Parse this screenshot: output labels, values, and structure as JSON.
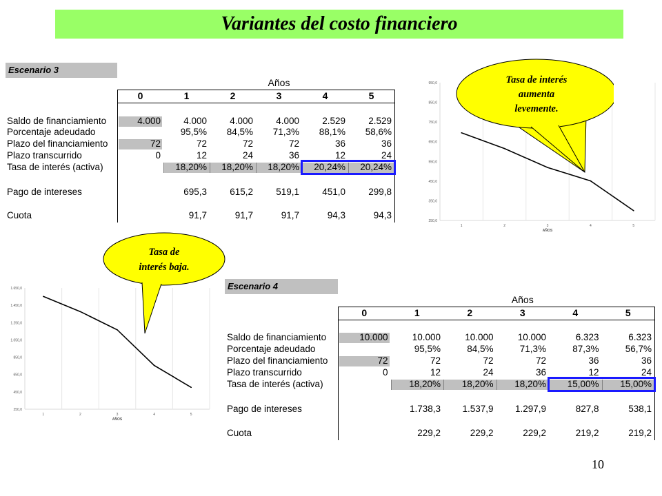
{
  "title": "Variantes del costo financiero",
  "page_number": "10",
  "row_labels": [
    "Saldo de financiamiento",
    "Porcentaje adeudado",
    "Plazo del financiamiento",
    "Plazo transcurrido",
    "Tasa de interés (activa)",
    "Pago de intereses",
    "Cuota"
  ],
  "years_label": "Años",
  "year_headers": [
    "0",
    "1",
    "2",
    "3",
    "4",
    "5"
  ],
  "scenario3": {
    "label": "Escenario 3",
    "rows": [
      [
        "4.000",
        "4.000",
        "4.000",
        "4.000",
        "2.529",
        "2.529"
      ],
      [
        "",
        "95,5%",
        "84,5%",
        "71,3%",
        "88,1%",
        "58,6%"
      ],
      [
        "72",
        "72",
        "72",
        "72",
        "36",
        "36"
      ],
      [
        "0",
        "12",
        "24",
        "36",
        "12",
        "24"
      ],
      [
        "",
        "18,20%",
        "18,20%",
        "18,20%",
        "20,24%",
        "20,24%"
      ],
      [
        "",
        "695,3",
        "615,2",
        "519,1",
        "451,0",
        "299,8"
      ],
      [
        "",
        "91,7",
        "91,7",
        "91,7",
        "94,3",
        "94,3"
      ]
    ],
    "callout": [
      "Tasa de interés",
      "aumenta",
      "levemente."
    ]
  },
  "scenario4": {
    "label": "Escenario 4",
    "rows": [
      [
        "10.000",
        "10.000",
        "10.000",
        "10.000",
        "6.323",
        "6.323"
      ],
      [
        "",
        "95,5%",
        "84,5%",
        "71,3%",
        "87,3%",
        "56,7%"
      ],
      [
        "72",
        "72",
        "72",
        "72",
        "36",
        "36"
      ],
      [
        "0",
        "12",
        "24",
        "36",
        "12",
        "24"
      ],
      [
        "",
        "18,20%",
        "18,20%",
        "18,20%",
        "15,00%",
        "15,00%"
      ],
      [
        "",
        "1.738,3",
        "1.537,9",
        "1.297,9",
        "827,8",
        "538,1"
      ],
      [
        "",
        "229,2",
        "229,2",
        "229,2",
        "219,2",
        "219,2"
      ]
    ],
    "callout": [
      "Tasa de",
      "interés baja."
    ]
  },
  "chart_data": [
    {
      "type": "line",
      "xlabel": "AÑOS",
      "categories": [
        "1",
        "2",
        "3",
        "4",
        "5"
      ],
      "values": [
        695.3,
        615.2,
        519.1,
        451.0,
        299.8
      ],
      "ylim": [
        250,
        950
      ],
      "yticks": [
        "950,0",
        "850,0",
        "750,0",
        "650,0",
        "550,0",
        "450,0",
        "350,0",
        "250,0"
      ],
      "color": "#000000",
      "grid": "vertical"
    },
    {
      "type": "line",
      "xlabel": "AÑOS",
      "categories": [
        "1",
        "2",
        "3",
        "4",
        "5"
      ],
      "values": [
        1738.3,
        1537.9,
        1297.9,
        827.8,
        538.1
      ],
      "ylim": [
        250,
        1850
      ],
      "yticks": [
        "1.650,0",
        "1.450,0",
        "1.250,0",
        "1.050,0",
        "850,0",
        "650,0",
        "450,0",
        "250,0"
      ],
      "color": "#000000",
      "grid": "vertical"
    }
  ]
}
